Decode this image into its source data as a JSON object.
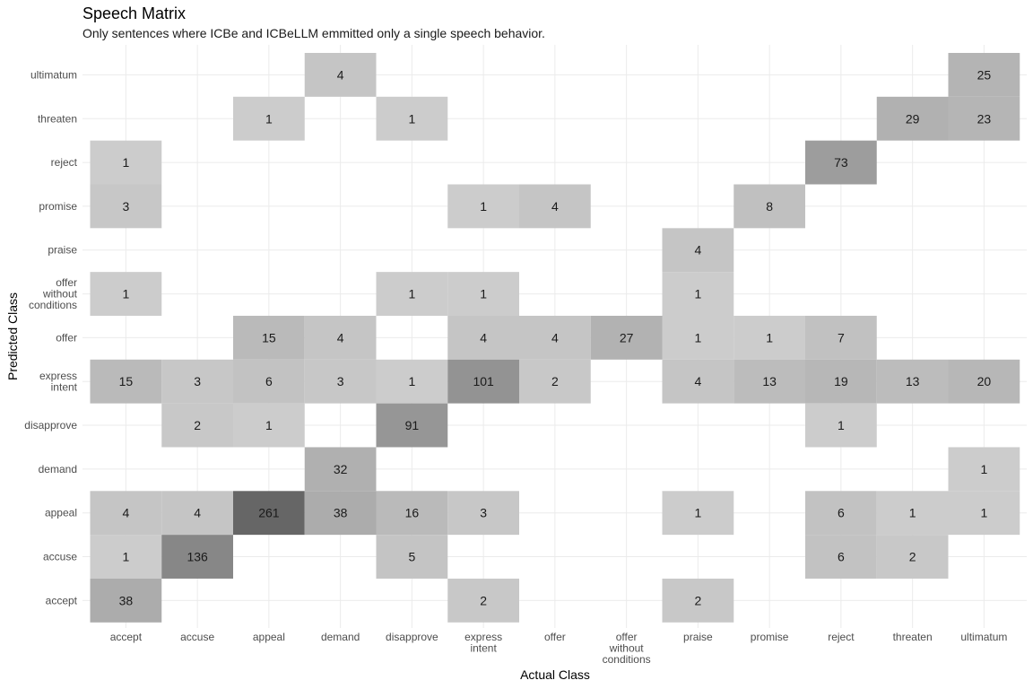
{
  "chart_data": {
    "type": "heatmap",
    "title": "Speech Matrix",
    "subtitle": "Only sentences where ICBe and ICBeLLM emmitted only a single speech behavior.",
    "xlabel": "Actual Class",
    "ylabel": "Predicted Class",
    "x_categories": [
      "accept",
      "accuse",
      "appeal",
      "demand",
      "disapprove",
      "express intent",
      "offer",
      "offer without conditions",
      "praise",
      "promise",
      "reject",
      "threaten",
      "ultimatum"
    ],
    "x_tick_lines": [
      [
        "accept"
      ],
      [
        "accuse"
      ],
      [
        "appeal"
      ],
      [
        "demand"
      ],
      [
        "disapprove"
      ],
      [
        "express",
        "intent"
      ],
      [
        "offer"
      ],
      [
        "offer",
        "without",
        "conditions"
      ],
      [
        "praise"
      ],
      [
        "promise"
      ],
      [
        "reject"
      ],
      [
        "threaten"
      ],
      [
        "ultimatum"
      ]
    ],
    "y_categories": [
      "accept",
      "accuse",
      "appeal",
      "demand",
      "disapprove",
      "express intent",
      "offer",
      "offer without conditions",
      "praise",
      "promise",
      "reject",
      "threaten",
      "ultimatum"
    ],
    "y_tick_lines": [
      [
        "accept"
      ],
      [
        "accuse"
      ],
      [
        "appeal"
      ],
      [
        "demand"
      ],
      [
        "disapprove"
      ],
      [
        "express",
        "intent"
      ],
      [
        "offer"
      ],
      [
        "offer",
        "without",
        "conditions"
      ],
      [
        "praise"
      ],
      [
        "promise"
      ],
      [
        "reject"
      ],
      [
        "threaten"
      ],
      [
        "ultimatum"
      ]
    ],
    "grid": true,
    "fill_colors": {
      "low": "#cccccc",
      "high": "#666666"
    },
    "cells": [
      {
        "x": "accept",
        "y": "ultimatum",
        "value": null
      },
      {
        "x": "demand",
        "y": "ultimatum",
        "value": 4
      },
      {
        "x": "ultimatum",
        "y": "ultimatum",
        "value": 25
      },
      {
        "x": "appeal",
        "y": "threaten",
        "value": 1
      },
      {
        "x": "disapprove",
        "y": "threaten",
        "value": 1
      },
      {
        "x": "threaten",
        "y": "threaten",
        "value": 29
      },
      {
        "x": "ultimatum",
        "y": "threaten",
        "value": 23
      },
      {
        "x": "accept",
        "y": "reject",
        "value": 1
      },
      {
        "x": "reject",
        "y": "reject",
        "value": 73
      },
      {
        "x": "accept",
        "y": "promise",
        "value": 3
      },
      {
        "x": "express intent",
        "y": "promise",
        "value": 1
      },
      {
        "x": "offer",
        "y": "promise",
        "value": 4
      },
      {
        "x": "promise",
        "y": "promise",
        "value": 8
      },
      {
        "x": "praise",
        "y": "praise",
        "value": 4
      },
      {
        "x": "accept",
        "y": "offer without conditions",
        "value": 1
      },
      {
        "x": "disapprove",
        "y": "offer without conditions",
        "value": 1
      },
      {
        "x": "express intent",
        "y": "offer without conditions",
        "value": 1
      },
      {
        "x": "praise",
        "y": "offer without conditions",
        "value": 1
      },
      {
        "x": "appeal",
        "y": "offer",
        "value": 15
      },
      {
        "x": "demand",
        "y": "offer",
        "value": 4
      },
      {
        "x": "express intent",
        "y": "offer",
        "value": 4
      },
      {
        "x": "offer",
        "y": "offer",
        "value": 4
      },
      {
        "x": "offer without conditions",
        "y": "offer",
        "value": 27
      },
      {
        "x": "praise",
        "y": "offer",
        "value": 1
      },
      {
        "x": "promise",
        "y": "offer",
        "value": 1
      },
      {
        "x": "reject",
        "y": "offer",
        "value": 7
      },
      {
        "x": "accept",
        "y": "express intent",
        "value": 15
      },
      {
        "x": "accuse",
        "y": "express intent",
        "value": 3
      },
      {
        "x": "appeal",
        "y": "express intent",
        "value": 6
      },
      {
        "x": "demand",
        "y": "express intent",
        "value": 3
      },
      {
        "x": "disapprove",
        "y": "express intent",
        "value": 1
      },
      {
        "x": "express intent",
        "y": "express intent",
        "value": 101
      },
      {
        "x": "offer",
        "y": "express intent",
        "value": 2
      },
      {
        "x": "praise",
        "y": "express intent",
        "value": 4
      },
      {
        "x": "promise",
        "y": "express intent",
        "value": 13
      },
      {
        "x": "reject",
        "y": "express intent",
        "value": 19
      },
      {
        "x": "threaten",
        "y": "express intent",
        "value": 13
      },
      {
        "x": "ultimatum",
        "y": "express intent",
        "value": 20
      },
      {
        "x": "accuse",
        "y": "disapprove",
        "value": 2
      },
      {
        "x": "appeal",
        "y": "disapprove",
        "value": 1
      },
      {
        "x": "disapprove",
        "y": "disapprove",
        "value": 91
      },
      {
        "x": "reject",
        "y": "disapprove",
        "value": 1
      },
      {
        "x": "demand",
        "y": "demand",
        "value": 32
      },
      {
        "x": "ultimatum",
        "y": "demand",
        "value": 1
      },
      {
        "x": "accept",
        "y": "appeal",
        "value": 4
      },
      {
        "x": "accuse",
        "y": "appeal",
        "value": 4
      },
      {
        "x": "appeal",
        "y": "appeal",
        "value": 261
      },
      {
        "x": "demand",
        "y": "appeal",
        "value": 38
      },
      {
        "x": "disapprove",
        "y": "appeal",
        "value": 16
      },
      {
        "x": "express intent",
        "y": "appeal",
        "value": 3
      },
      {
        "x": "praise",
        "y": "appeal",
        "value": 1
      },
      {
        "x": "reject",
        "y": "appeal",
        "value": 6
      },
      {
        "x": "threaten",
        "y": "appeal",
        "value": 1
      },
      {
        "x": "ultimatum",
        "y": "appeal",
        "value": 1
      },
      {
        "x": "accept",
        "y": "accuse",
        "value": 1
      },
      {
        "x": "accuse",
        "y": "accuse",
        "value": 136
      },
      {
        "x": "disapprove",
        "y": "accuse",
        "value": 5
      },
      {
        "x": "reject",
        "y": "accuse",
        "value": 6
      },
      {
        "x": "threaten",
        "y": "accuse",
        "value": 2
      },
      {
        "x": "accept",
        "y": "accept",
        "value": 38
      },
      {
        "x": "express intent",
        "y": "accept",
        "value": 2
      },
      {
        "x": "praise",
        "y": "accept",
        "value": 2
      }
    ]
  }
}
